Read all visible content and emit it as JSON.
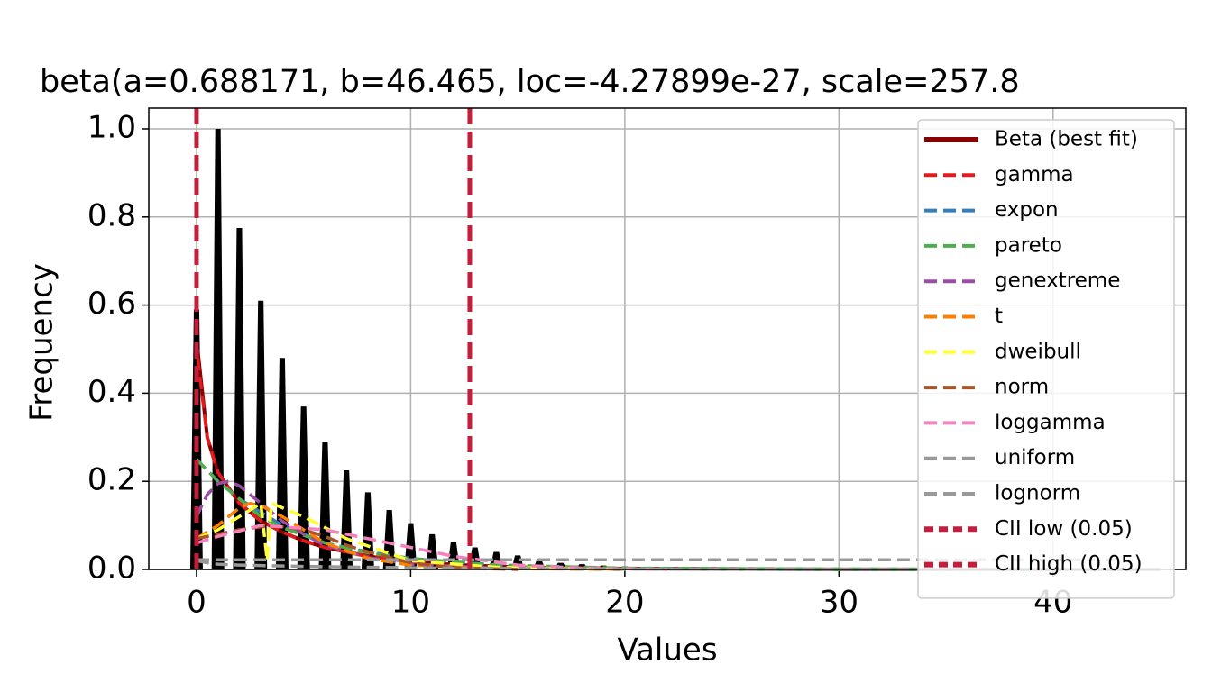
{
  "chart_data": {
    "type": "distribution-fit",
    "title": "beta(a=0.688171, b=46.465, loc=-4.27899e-27, scale=257.8",
    "x_label": "Values",
    "y_label": "Frequency",
    "xlim": [
      -2.23,
      46.2
    ],
    "ylim": [
      0,
      1.047
    ],
    "xticks": [
      0,
      10,
      20,
      30,
      40
    ],
    "yticks": [
      {
        "value": 0,
        "label": "0.0"
      },
      0.2,
      0.4,
      0.6,
      0.8,
      {
        "value": 1,
        "label": "1.0"
      }
    ],
    "grid": true,
    "legend": "upper right",
    "histogram": {
      "color": "#000000",
      "x": [
        0,
        1,
        2,
        3,
        4,
        5,
        6,
        7,
        8,
        9,
        10,
        11,
        12,
        13,
        14,
        15,
        16,
        17,
        18,
        19,
        20,
        21,
        22,
        23,
        24,
        25,
        26,
        27,
        28,
        29,
        30
      ],
      "values": [
        0.59,
        1.0,
        0.775,
        0.61,
        0.48,
        0.37,
        0.29,
        0.225,
        0.175,
        0.135,
        0.105,
        0.08,
        0.062,
        0.05,
        0.04,
        0.032,
        0.02,
        0.015,
        0.012,
        0.009,
        0.007,
        0.005,
        0.004,
        0.003,
        0.003,
        0.002,
        0.002,
        0.002,
        0.001,
        0.001,
        0.001
      ]
    },
    "series": [
      {
        "name": "Beta (best fit)",
        "color": "#8b0000",
        "style": "solid",
        "x": [
          0.05,
          0.5,
          1,
          2,
          3,
          4,
          5,
          6,
          8,
          10,
          12,
          15,
          20,
          30,
          45
        ],
        "values": [
          0.5,
          0.3,
          0.22,
          0.15,
          0.11,
          0.085,
          0.065,
          0.05,
          0.03,
          0.018,
          0.011,
          0.005,
          0.002,
          0.0003,
          0
        ]
      },
      {
        "name": "gamma",
        "color": "#e41a1c",
        "style": "dashed",
        "x": [
          0.05,
          0.5,
          1,
          2,
          3,
          4,
          5,
          6,
          8,
          10,
          12,
          15,
          20,
          30,
          45
        ],
        "values": [
          0.48,
          0.3,
          0.22,
          0.15,
          0.11,
          0.085,
          0.065,
          0.05,
          0.03,
          0.018,
          0.011,
          0.005,
          0.002,
          0.0003,
          0
        ]
      },
      {
        "name": "expon",
        "color": "#377eb8",
        "style": "dashed",
        "x": [
          0,
          1,
          2,
          4,
          6,
          8,
          10,
          14,
          20,
          30,
          45
        ],
        "values": [
          0.25,
          0.2,
          0.16,
          0.1,
          0.06,
          0.04,
          0.025,
          0.01,
          0.002,
          0,
          0
        ]
      },
      {
        "name": "pareto",
        "color": "#4daf4a",
        "style": "dashed",
        "x": [
          0,
          1,
          2,
          3,
          4,
          6,
          8,
          10,
          14,
          20,
          30,
          45
        ],
        "values": [
          0.25,
          0.2,
          0.16,
          0.12,
          0.095,
          0.06,
          0.038,
          0.024,
          0.01,
          0.003,
          0.001,
          0
        ]
      },
      {
        "name": "genextreme",
        "color": "#984ea3",
        "style": "dashed",
        "x": [
          0,
          0.5,
          1,
          1.5,
          2,
          3,
          4,
          5,
          6,
          8,
          10,
          14,
          20
        ],
        "values": [
          0.12,
          0.17,
          0.195,
          0.2,
          0.19,
          0.15,
          0.11,
          0.08,
          0.055,
          0.027,
          0.012,
          0.003,
          0
        ]
      },
      {
        "name": "t",
        "color": "#ff7f00",
        "style": "dashed",
        "x": [
          0,
          1,
          2,
          2.5,
          3,
          4,
          5,
          6,
          8,
          10,
          14,
          20
        ],
        "values": [
          0.07,
          0.1,
          0.14,
          0.15,
          0.145,
          0.12,
          0.09,
          0.06,
          0.025,
          0.01,
          0.002,
          0
        ]
      },
      {
        "name": "dweibull",
        "color": "#ffff33",
        "style": "dashed",
        "x": [
          0,
          1,
          2,
          3,
          3.3,
          3.5,
          4,
          5,
          7,
          10,
          14,
          20
        ],
        "values": [
          0.07,
          0.09,
          0.12,
          0.15,
          0.02,
          0.15,
          0.14,
          0.12,
          0.07,
          0.02,
          0.005,
          0
        ]
      },
      {
        "name": "norm",
        "color": "#a65628",
        "style": "dashed",
        "x": [
          0,
          1,
          2,
          3.5,
          5,
          6,
          7,
          8,
          10,
          12,
          15
        ],
        "values": [
          0.07,
          0.08,
          0.09,
          0.1,
          0.09,
          0.075,
          0.055,
          0.04,
          0.015,
          0.004,
          0
        ]
      },
      {
        "name": "loggamma",
        "color": "#f781bf",
        "style": "dashed",
        "x": [
          0,
          1,
          3,
          6,
          9,
          12,
          15,
          18,
          22
        ],
        "values": [
          0.06,
          0.075,
          0.1,
          0.09,
          0.06,
          0.03,
          0.01,
          0.003,
          0
        ]
      },
      {
        "name": "uniform",
        "color": "#999999",
        "style": "dashed",
        "x": [
          0,
          43
        ],
        "values": [
          0.022,
          0.022
        ]
      },
      {
        "name": "lognorm",
        "color": "#999999",
        "style": "dashed",
        "x": [
          0,
          0.5,
          1,
          2,
          3,
          5,
          8,
          12,
          20,
          45
        ],
        "values": [
          0.02,
          0.015,
          0.012,
          0.01,
          0.009,
          0.007,
          0.005,
          0.003,
          0.001,
          0
        ]
      }
    ],
    "vlines": [
      {
        "name": "CII low (0.05)",
        "color": "#c41e3a",
        "x": 0
      },
      {
        "name": "CII high (0.05)",
        "color": "#c41e3a",
        "x": 12.76
      }
    ]
  }
}
